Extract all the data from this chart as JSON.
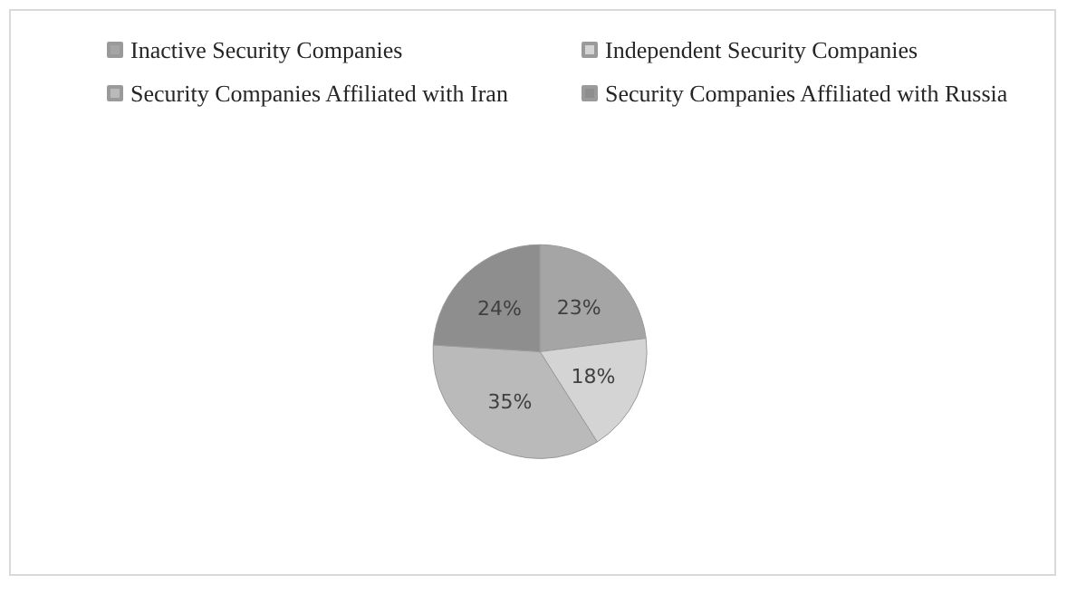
{
  "chart_data": {
    "type": "pie",
    "categories": [
      "Inactive Security Companies",
      "Independent Security Companies",
      "Security Companies Affiliated with Iran",
      "Security Companies Affiliated with Russia"
    ],
    "values": [
      23,
      18,
      35,
      24
    ],
    "colors": [
      "#a5a5a5",
      "#d4d4d4",
      "#bababa",
      "#8e8e8e"
    ],
    "value_labels": [
      "23%",
      "18%",
      "35%",
      "24%"
    ],
    "legend": "top"
  }
}
